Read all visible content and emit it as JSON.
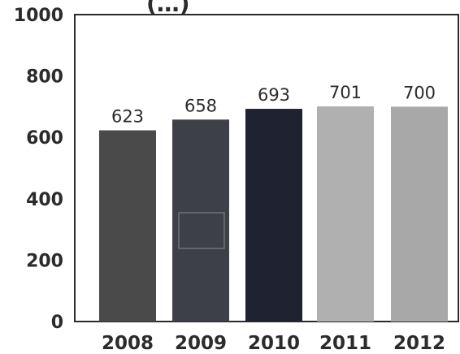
{
  "chart_data": {
    "type": "bar",
    "title": "(…)",
    "categories": [
      "2008",
      "2009",
      "2010",
      "2011",
      "2012"
    ],
    "values": [
      623,
      658,
      693,
      701,
      700
    ],
    "data_labels": [
      "623",
      "658",
      "693",
      "701",
      "700"
    ],
    "ylim": [
      0,
      1000
    ],
    "yticks": [
      "0",
      "200",
      "400",
      "600",
      "800",
      "1000"
    ],
    "xlabel": "",
    "ylabel": "",
    "grid": false,
    "legend": "none",
    "bar_colors": [
      "#4a4a4a",
      "#3e4048",
      "#1f2230",
      "#b0b0b0",
      "#a8a8a8"
    ],
    "axis_color": "#2b2b2b"
  }
}
